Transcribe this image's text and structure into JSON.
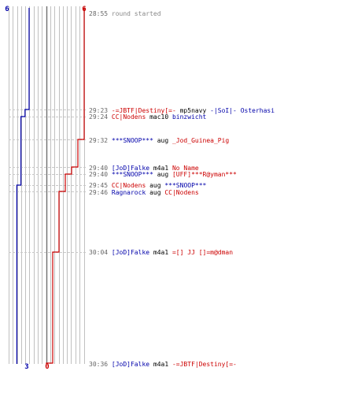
{
  "score_labels": {
    "top_blue": "6",
    "top_red": "6",
    "bottom_blue": "3",
    "bottom_red": "0"
  },
  "colors": {
    "blue": "#0000aa",
    "red": "#cc0000",
    "time": "#666666",
    "info": "#888888",
    "grid": "#c0c0c0",
    "center": "#707070",
    "dash": "#c8c8c8",
    "text": "#000000"
  },
  "events": [
    {
      "time": "28:55",
      "parts": [
        {
          "text": "round started",
          "color": "info"
        }
      ]
    },
    {
      "time": "29:23",
      "parts": [
        {
          "text": "-=JBTF|Destiny[=-",
          "color": "red"
        },
        {
          "text": " mp5navy ",
          "color": "text"
        },
        {
          "text": "-|SoI|- Osterhasi",
          "color": "blue"
        }
      ]
    },
    {
      "time": "29:24",
      "parts": [
        {
          "text": "CC|Nodens",
          "color": "red"
        },
        {
          "text": " mac10 ",
          "color": "text"
        },
        {
          "text": "binzwicht",
          "color": "blue"
        }
      ]
    },
    {
      "time": "29:32",
      "parts": [
        {
          "text": "***SNOOP***",
          "color": "blue"
        },
        {
          "text": " aug ",
          "color": "text"
        },
        {
          "text": "_Jod_Guinea_Pig",
          "color": "red"
        }
      ]
    },
    {
      "time": "29:40",
      "parts": [
        {
          "text": "[JoD]Falke",
          "color": "blue"
        },
        {
          "text": " m4a1 ",
          "color": "text"
        },
        {
          "text": "No Name",
          "color": "red"
        }
      ]
    },
    {
      "time": "29:40",
      "parts": [
        {
          "text": "***SNOOP***",
          "color": "blue"
        },
        {
          "text": " aug ",
          "color": "text"
        },
        {
          "text": "[UFF]***R@yman***",
          "color": "red"
        }
      ]
    },
    {
      "time": "29:45",
      "parts": [
        {
          "text": "CC|Nodens",
          "color": "red"
        },
        {
          "text": " aug ",
          "color": "text"
        },
        {
          "text": "***SNOOP***",
          "color": "blue"
        }
      ]
    },
    {
      "time": "29:46",
      "parts": [
        {
          "text": "Ragnarock",
          "color": "blue"
        },
        {
          "text": " aug ",
          "color": "text"
        },
        {
          "text": "CC|Nodens",
          "color": "red"
        }
      ]
    },
    {
      "time": "30:04",
      "parts": [
        {
          "text": "[JoD]Falke",
          "color": "blue"
        },
        {
          "text": " m4a1 ",
          "color": "text"
        },
        {
          "text": "=[] JJ []=m@dman",
          "color": "red"
        }
      ]
    },
    {
      "time": "30:36",
      "parts": [
        {
          "text": "[JoD]Falke",
          "color": "blue"
        },
        {
          "text": " m4a1 ",
          "color": "text"
        },
        {
          "text": "-=JBTF|Destiny[=-",
          "color": "red"
        }
      ]
    }
  ],
  "blue_steps": [
    {
      "count": 6,
      "event": 0
    },
    {
      "count": 5,
      "event": 1
    },
    {
      "count": 4,
      "event": 2
    },
    {
      "count": 3,
      "event": 6
    }
  ],
  "red_steps": [
    {
      "count": 6,
      "event": 0
    },
    {
      "count": 5,
      "event": 3
    },
    {
      "count": 4,
      "event": 4
    },
    {
      "count": 3,
      "event": 5
    },
    {
      "count": 2,
      "event": 7
    },
    {
      "count": 1,
      "event": 8
    },
    {
      "count": 0,
      "event": 9
    }
  ]
}
